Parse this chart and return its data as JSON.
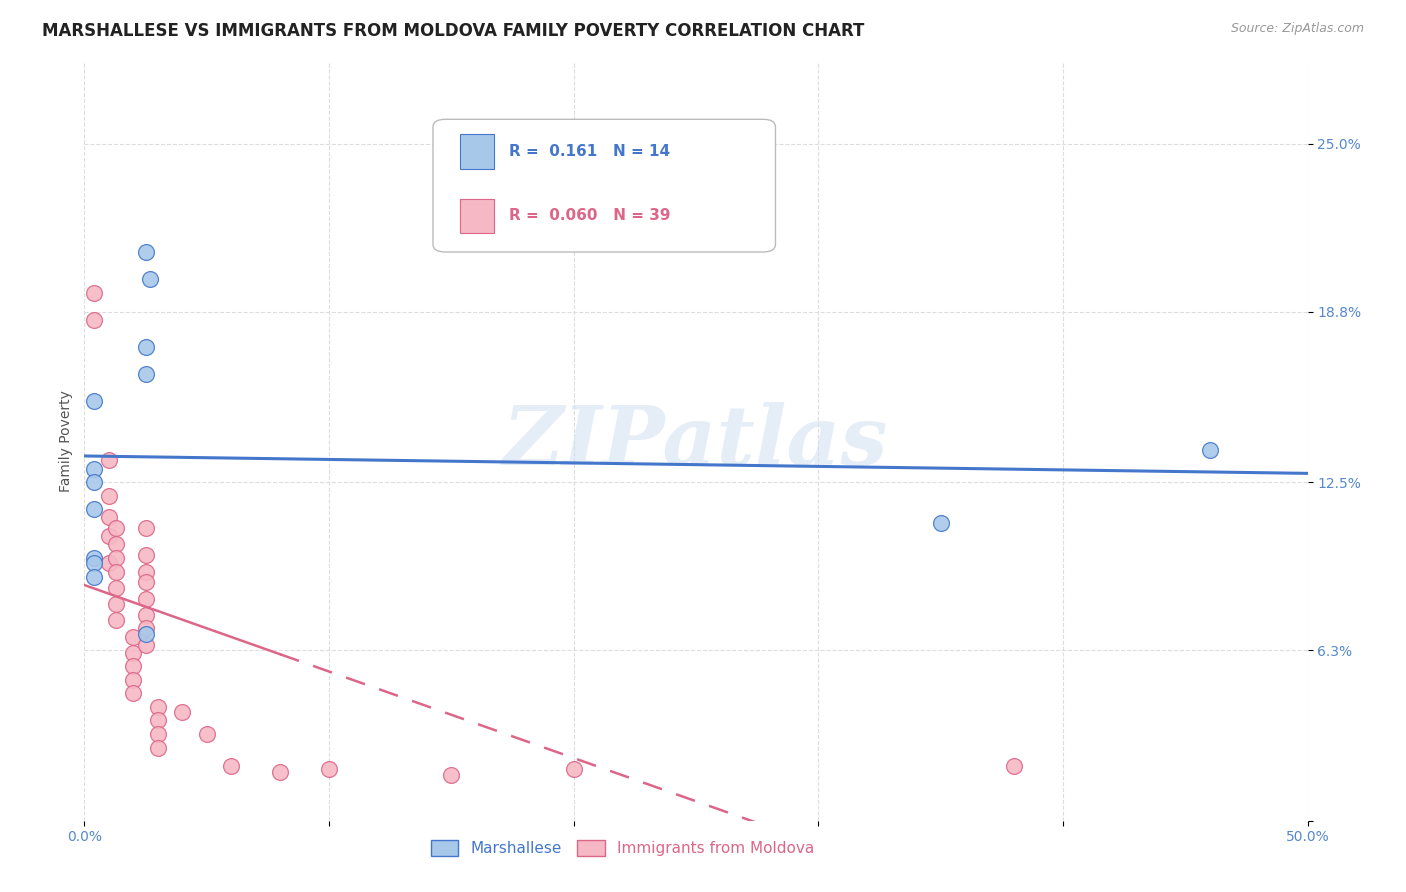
{
  "title": "MARSHALLESE VS IMMIGRANTS FROM MOLDOVA FAMILY POVERTY CORRELATION CHART",
  "source": "Source: ZipAtlas.com",
  "ylabel": "Family Poverty",
  "y_ticks_pct": [
    0.0,
    6.3,
    12.5,
    18.8,
    25.0
  ],
  "y_tick_labels": [
    "",
    "6.3%",
    "12.5%",
    "18.8%",
    "25.0%"
  ],
  "xlim": [
    0.0,
    0.5
  ],
  "ylim": [
    0.0,
    0.28
  ],
  "legend_blue_r": "0.161",
  "legend_blue_n": "14",
  "legend_pink_r": "0.060",
  "legend_pink_n": "39",
  "legend_label_blue": "Marshallese",
  "legend_label_pink": "Immigrants from Moldova",
  "blue_color": "#a8c8ea",
  "pink_color": "#f5b8c4",
  "trendline_blue_color": "#4477cc",
  "trendline_pink_color": "#dd6688",
  "background_color": "#ffffff",
  "marshallese_x": [
    0.004,
    0.004,
    0.004,
    0.004,
    0.004,
    0.004,
    0.025,
    0.025,
    0.025,
    0.027,
    0.35,
    0.46,
    0.025,
    0.004
  ],
  "marshallese_y": [
    0.155,
    0.13,
    0.125,
    0.097,
    0.095,
    0.09,
    0.21,
    0.175,
    0.165,
    0.2,
    0.11,
    0.137,
    0.069,
    0.115
  ],
  "moldova_x": [
    0.004,
    0.004,
    0.01,
    0.01,
    0.01,
    0.01,
    0.01,
    0.013,
    0.013,
    0.013,
    0.013,
    0.013,
    0.013,
    0.013,
    0.02,
    0.02,
    0.02,
    0.02,
    0.02,
    0.025,
    0.025,
    0.025,
    0.025,
    0.025,
    0.025,
    0.025,
    0.025,
    0.03,
    0.03,
    0.03,
    0.03,
    0.04,
    0.05,
    0.06,
    0.08,
    0.1,
    0.15,
    0.2,
    0.38
  ],
  "moldova_y": [
    0.195,
    0.185,
    0.133,
    0.12,
    0.112,
    0.105,
    0.095,
    0.108,
    0.102,
    0.097,
    0.092,
    0.086,
    0.08,
    0.074,
    0.068,
    0.062,
    0.057,
    0.052,
    0.047,
    0.108,
    0.098,
    0.092,
    0.088,
    0.082,
    0.076,
    0.071,
    0.065,
    0.042,
    0.037,
    0.032,
    0.027,
    0.04,
    0.032,
    0.02,
    0.018,
    0.019,
    0.017,
    0.019,
    0.02
  ],
  "watermark": "ZIPatlas",
  "grid_color": "#dddddd",
  "tick_color": "#5588cc",
  "title_fontsize": 12,
  "axis_label_fontsize": 10,
  "tick_fontsize": 10,
  "legend_fontsize": 11
}
